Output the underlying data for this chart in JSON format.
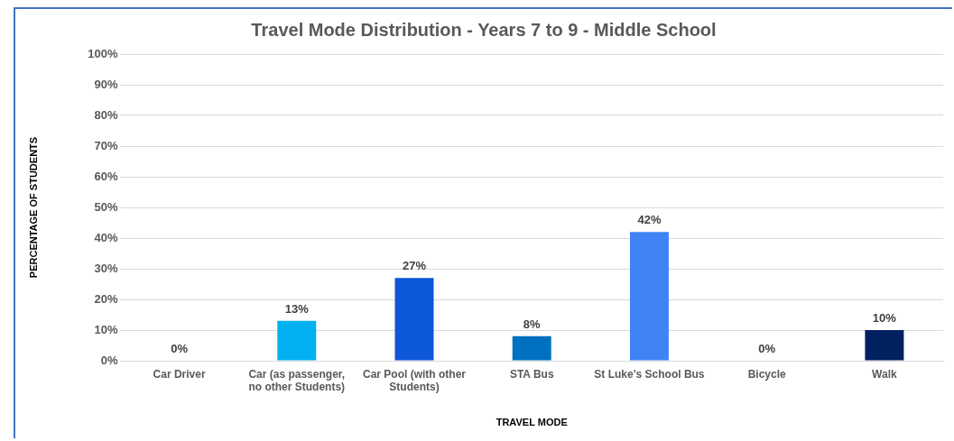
{
  "chart_data": {
    "type": "bar",
    "title": "Travel Mode Distribution - Years 7 to 9 - Middle School",
    "xlabel": "TRAVEL MODE",
    "ylabel": "PERCENTAGE OF STUDENTS",
    "categories": [
      "Car Driver",
      "Car (as passenger, no other Students)",
      "Car Pool (with other Students)",
      "STA Bus",
      "St Luke's School Bus",
      "Bicycle",
      "Walk"
    ],
    "values": [
      0,
      13,
      27,
      8,
      42,
      0,
      10
    ],
    "colors": [
      "#1f4fd8",
      "#00b0f0",
      "#0d57d9",
      "#0070c0",
      "#4083f5",
      "#1f4fd8",
      "#002060"
    ],
    "value_labels": [
      "0%",
      "13%",
      "27%",
      "8%",
      "42%",
      "0%",
      "10%"
    ],
    "ylim": [
      0,
      100
    ],
    "yticks": [
      {
        "value": 0,
        "label": "0%"
      },
      {
        "value": 10,
        "label": "10%"
      },
      {
        "value": 20,
        "label": "20%"
      },
      {
        "value": 30,
        "label": "30%"
      },
      {
        "value": 40,
        "label": "40%"
      },
      {
        "value": 50,
        "label": "50%"
      },
      {
        "value": 60,
        "label": "60%"
      },
      {
        "value": 70,
        "label": "70%"
      },
      {
        "value": 80,
        "label": "80%"
      },
      {
        "value": 90,
        "label": "90%"
      },
      {
        "value": 100,
        "label": "100%"
      }
    ],
    "grid": "y",
    "legend": false
  }
}
